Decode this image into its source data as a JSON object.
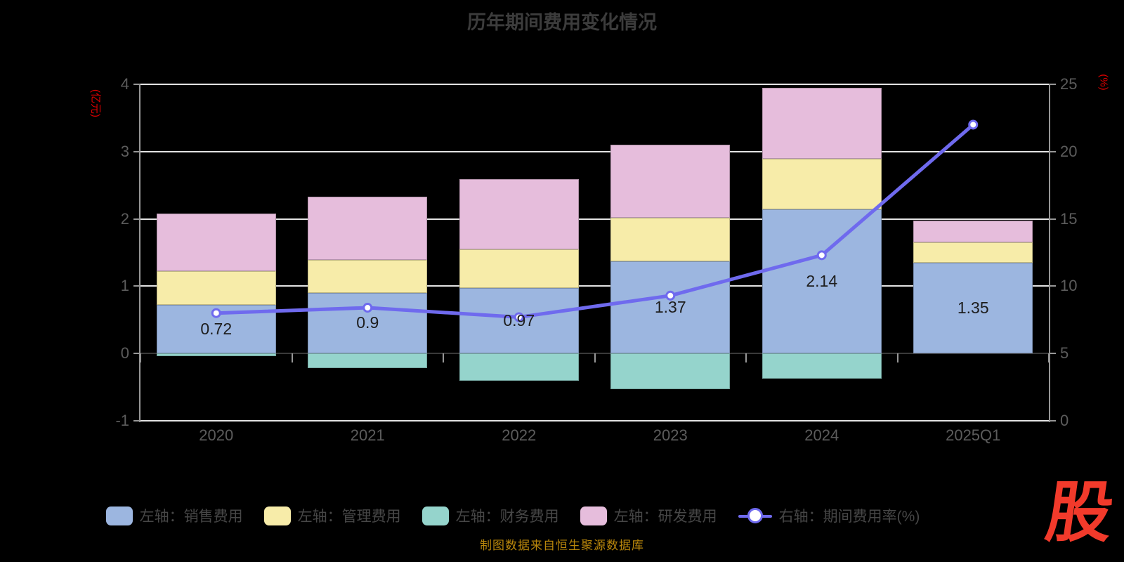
{
  "title": "历年期间费用变化情况",
  "footer": {
    "source": "制图数据来自恒生聚源数据库",
    "logo": "股"
  },
  "left_axis": {
    "unit": "(亿元)",
    "min": -1,
    "max": 4,
    "ticks": [
      4,
      3,
      2,
      1,
      0,
      -1
    ]
  },
  "right_axis": {
    "unit": "(%)",
    "min": 0,
    "max": 25,
    "ticks": [
      25,
      20,
      15,
      10,
      5,
      0
    ]
  },
  "chart_data": {
    "type": "bar",
    "subtype": "stacked-bars-with-line-overlay",
    "categories": [
      "2020",
      "2021",
      "2022",
      "2023",
      "2024",
      "2025Q1"
    ],
    "series": [
      {
        "name": "左轴：销售费用",
        "kind": "bar",
        "axis": "left",
        "color": "#9cb6e0",
        "values": [
          0.72,
          0.9,
          0.97,
          1.37,
          2.14,
          1.35
        ]
      },
      {
        "name": "左轴：管理费用",
        "kind": "bar",
        "axis": "left",
        "color": "#f7eca9",
        "values": [
          0.5,
          0.49,
          0.58,
          0.65,
          0.75,
          0.3
        ]
      },
      {
        "name": "左轴：财务费用",
        "kind": "bar",
        "axis": "left",
        "color": "#95d4cc",
        "values": [
          -0.04,
          -0.22,
          -0.41,
          -0.53,
          -0.37,
          0
        ]
      },
      {
        "name": "左轴：研发费用",
        "kind": "bar",
        "axis": "left",
        "color": "#e6bddc",
        "values": [
          0.86,
          0.94,
          1.04,
          1.08,
          1.06,
          0.33
        ]
      },
      {
        "name": "右轴：期间费用率(%)",
        "kind": "line",
        "axis": "right",
        "color": "#6f6aee",
        "values": [
          8.0,
          8.4,
          7.7,
          9.3,
          12.3,
          22.0
        ]
      }
    ],
    "bar_value_labels": [
      "0.72",
      "0.9",
      "0.97",
      "1.37",
      "2.14",
      "1.35"
    ],
    "legend_position": "bottom",
    "grid": "horizontal-lines",
    "left_ylim": [
      -1,
      4
    ],
    "right_ylim": [
      0,
      25
    ]
  },
  "colors": {
    "background": "#000000",
    "grid_line": "#e3e3e3",
    "zero_line": "#3a3a3a",
    "axis_line": "#979797",
    "tick_text": "#5c5c5c",
    "title_text": "#3c3c3c",
    "legend_text": "#474747",
    "data_label_text": "#1d1d1d",
    "unit_text": "#e00000",
    "footer_text": "#b8860b",
    "logo_red": "#f23a2b",
    "line_marker_fill": "#ffffff"
  }
}
